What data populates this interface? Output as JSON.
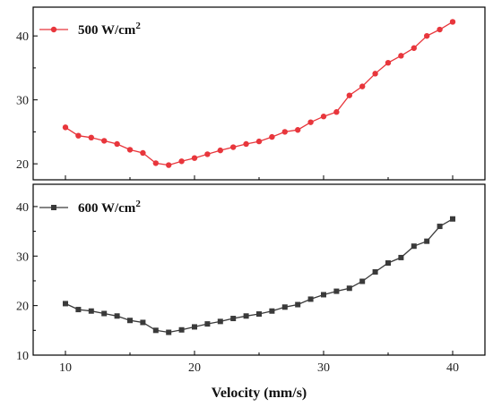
{
  "chart_data": [
    {
      "type": "line",
      "xlabel": "",
      "ylabel": "",
      "xlim": [
        7.5,
        42.5
      ],
      "ylim": [
        17.5,
        44.5
      ],
      "yticks": [
        20,
        30,
        40
      ],
      "xticks": [
        10,
        20,
        30,
        40
      ],
      "grid": false,
      "legend_position": "top-left",
      "series": [
        {
          "name": "500 W/cm",
          "name_superscript": "2",
          "color": "#e8363c",
          "marker": "circle",
          "x": [
            10,
            11,
            12,
            13,
            14,
            15,
            16,
            17,
            18,
            19,
            20,
            21,
            22,
            23,
            24,
            25,
            26,
            27,
            28,
            29,
            30,
            31,
            32,
            33,
            34,
            35,
            36,
            37,
            38,
            39,
            40
          ],
          "y": [
            25.7,
            24.4,
            24.1,
            23.6,
            23.1,
            22.2,
            21.7,
            20.1,
            19.8,
            20.4,
            20.9,
            21.5,
            22.1,
            22.6,
            23.1,
            23.5,
            24.2,
            25.0,
            25.3,
            26.5,
            27.4,
            28.1,
            30.7,
            32.1,
            34.1,
            35.8,
            36.9,
            38.1,
            40.0,
            41.0,
            42.2
          ]
        }
      ]
    },
    {
      "type": "line",
      "xlabel": "Velocity (mm/s)",
      "ylabel": "",
      "xlim": [
        7.5,
        42.5
      ],
      "ylim": [
        10,
        44.5
      ],
      "yticks": [
        10,
        20,
        30,
        40
      ],
      "xticks": [
        10,
        20,
        30,
        40
      ],
      "grid": false,
      "legend_position": "top-left",
      "series": [
        {
          "name": "600 W/cm",
          "name_superscript": "2",
          "color": "#3a3a3a",
          "marker": "square",
          "x": [
            10,
            11,
            12,
            13,
            14,
            15,
            16,
            17,
            18,
            19,
            20,
            21,
            22,
            23,
            24,
            25,
            26,
            27,
            28,
            29,
            30,
            31,
            32,
            33,
            34,
            35,
            36,
            37,
            38,
            39,
            40
          ],
          "y": [
            20.4,
            19.2,
            18.9,
            18.4,
            17.9,
            17.0,
            16.6,
            15.0,
            14.6,
            15.1,
            15.7,
            16.3,
            16.8,
            17.4,
            17.9,
            18.3,
            18.9,
            19.7,
            20.2,
            21.3,
            22.2,
            22.9,
            23.5,
            24.9,
            26.8,
            28.6,
            29.7,
            32.0,
            33.0,
            36.0,
            37.5
          ]
        }
      ]
    }
  ]
}
